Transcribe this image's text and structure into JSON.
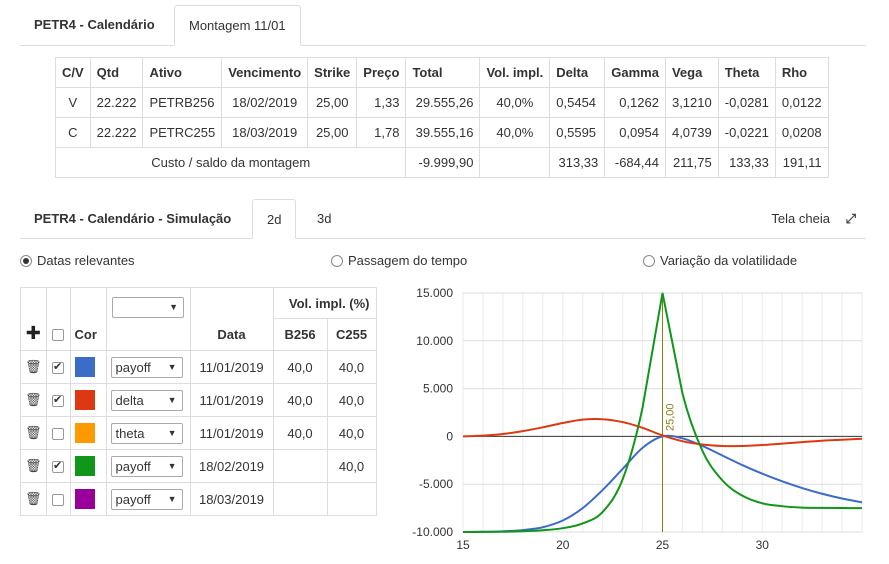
{
  "top_tabs": {
    "title": "PETR4 - Calendário",
    "active_tab": "Montagem 11/01"
  },
  "positions": {
    "headers": [
      "C/V",
      "Qtd",
      "Ativo",
      "Vencimento",
      "Strike",
      "Preço",
      "Total",
      "Vol. impl.",
      "Delta",
      "Gamma",
      "Vega",
      "Theta",
      "Rho"
    ],
    "rows": [
      [
        "V",
        "22.222",
        "PETRB256",
        "18/02/2019",
        "25,00",
        "1,33",
        "29.555,26",
        "40,0%",
        "0,5454",
        "0,1262",
        "3,1210",
        "-0,0281",
        "0,0122"
      ],
      [
        "C",
        "22.222",
        "PETRC255",
        "18/03/2019",
        "25,00",
        "1,78",
        "39.555,16",
        "40,0%",
        "0,5595",
        "0,0954",
        "4,0739",
        "-0,0221",
        "0,0208"
      ]
    ],
    "summary": {
      "label": "Custo / saldo da montagem",
      "total": "-9.999,90",
      "delta": "313,33",
      "gamma": "-684,44",
      "vega": "211,75",
      "theta": "133,33",
      "rho": "191,11"
    }
  },
  "sim_tabs": {
    "title": "PETR4 - Calendário - Simulação",
    "tab_2d": "2d",
    "tab_3d": "3d",
    "fullscreen": "Tela cheia"
  },
  "modes": {
    "relevant_dates": "Datas relevantes",
    "time_passage": "Passagem do tempo",
    "vol_change": "Variação da volatilidade",
    "selected": "relevant_dates"
  },
  "sim_table": {
    "col_color": "Cor",
    "col_date": "Data",
    "col_vol": "Vol. impl. (%)",
    "col_b256": "B256",
    "col_c255": "C255",
    "header_select": "",
    "rows": [
      {
        "checked": true,
        "color": "#3a6cc8",
        "metric": "payoff",
        "date": "11/01/2019",
        "b256": "40,0",
        "c255": "40,0"
      },
      {
        "checked": true,
        "color": "#dc3912",
        "metric": "delta",
        "date": "11/01/2019",
        "b256": "40,0",
        "c255": "40,0"
      },
      {
        "checked": false,
        "color": "#ff9900",
        "metric": "theta",
        "date": "11/01/2019",
        "b256": "40,0",
        "c255": "40,0"
      },
      {
        "checked": true,
        "color": "#109618",
        "metric": "payoff",
        "date": "18/02/2019",
        "b256": "",
        "c255": "40,0"
      },
      {
        "checked": false,
        "color": "#990099",
        "metric": "payoff",
        "date": "18/03/2019",
        "b256": "",
        "c255": ""
      }
    ]
  },
  "chart_data": {
    "type": "line",
    "xlim": [
      15,
      35
    ],
    "ylim": [
      -10000,
      15000
    ],
    "x_ticks": [
      15,
      20,
      25,
      30
    ],
    "y_ticks": [
      -10000,
      -5000,
      0,
      5000,
      10000,
      15000
    ],
    "x_tick_labels": [
      "15",
      "20",
      "25",
      "30"
    ],
    "y_tick_labels": [
      "-10.000",
      "-5.000",
      "0",
      "5.000",
      "10.000",
      "15.000"
    ],
    "strike_label": "25,00",
    "strike_value": 25,
    "grid": true,
    "series": [
      {
        "color": "#3a6cc8",
        "x": [
          15,
          16,
          17,
          18,
          19,
          20,
          21,
          22,
          23,
          24,
          25,
          26,
          27,
          28,
          29,
          30,
          31,
          32,
          33,
          34,
          35
        ],
        "y": [
          -10000,
          -9980,
          -9930,
          -9800,
          -9500,
          -8800,
          -7500,
          -5600,
          -3400,
          -1200,
          0,
          -200,
          -1000,
          -2000,
          -3000,
          -3900,
          -4700,
          -5400,
          -6000,
          -6500,
          -6900
        ]
      },
      {
        "color": "#dc3912",
        "x": [
          15,
          16,
          17,
          18,
          19,
          20,
          21,
          22,
          23,
          24,
          25,
          26,
          27,
          28,
          29,
          30,
          31,
          32,
          33,
          34,
          35
        ],
        "y": [
          0,
          80,
          250,
          550,
          950,
          1400,
          1750,
          1800,
          1500,
          900,
          100,
          -500,
          -850,
          -1000,
          -1000,
          -900,
          -750,
          -600,
          -450,
          -350,
          -250
        ]
      },
      {
        "color": "#109618",
        "x": [
          15,
          16,
          17,
          18,
          19,
          20,
          21,
          22,
          23,
          24,
          25,
          26,
          27,
          28,
          29,
          30,
          31,
          32,
          33,
          34,
          35
        ],
        "y": [
          -10000,
          -9990,
          -9970,
          -9920,
          -9820,
          -9600,
          -9100,
          -7900,
          -4500,
          3000,
          15000,
          4500,
          -1500,
          -4600,
          -6200,
          -7000,
          -7300,
          -7450,
          -7480,
          -7495,
          -7500
        ]
      }
    ]
  }
}
